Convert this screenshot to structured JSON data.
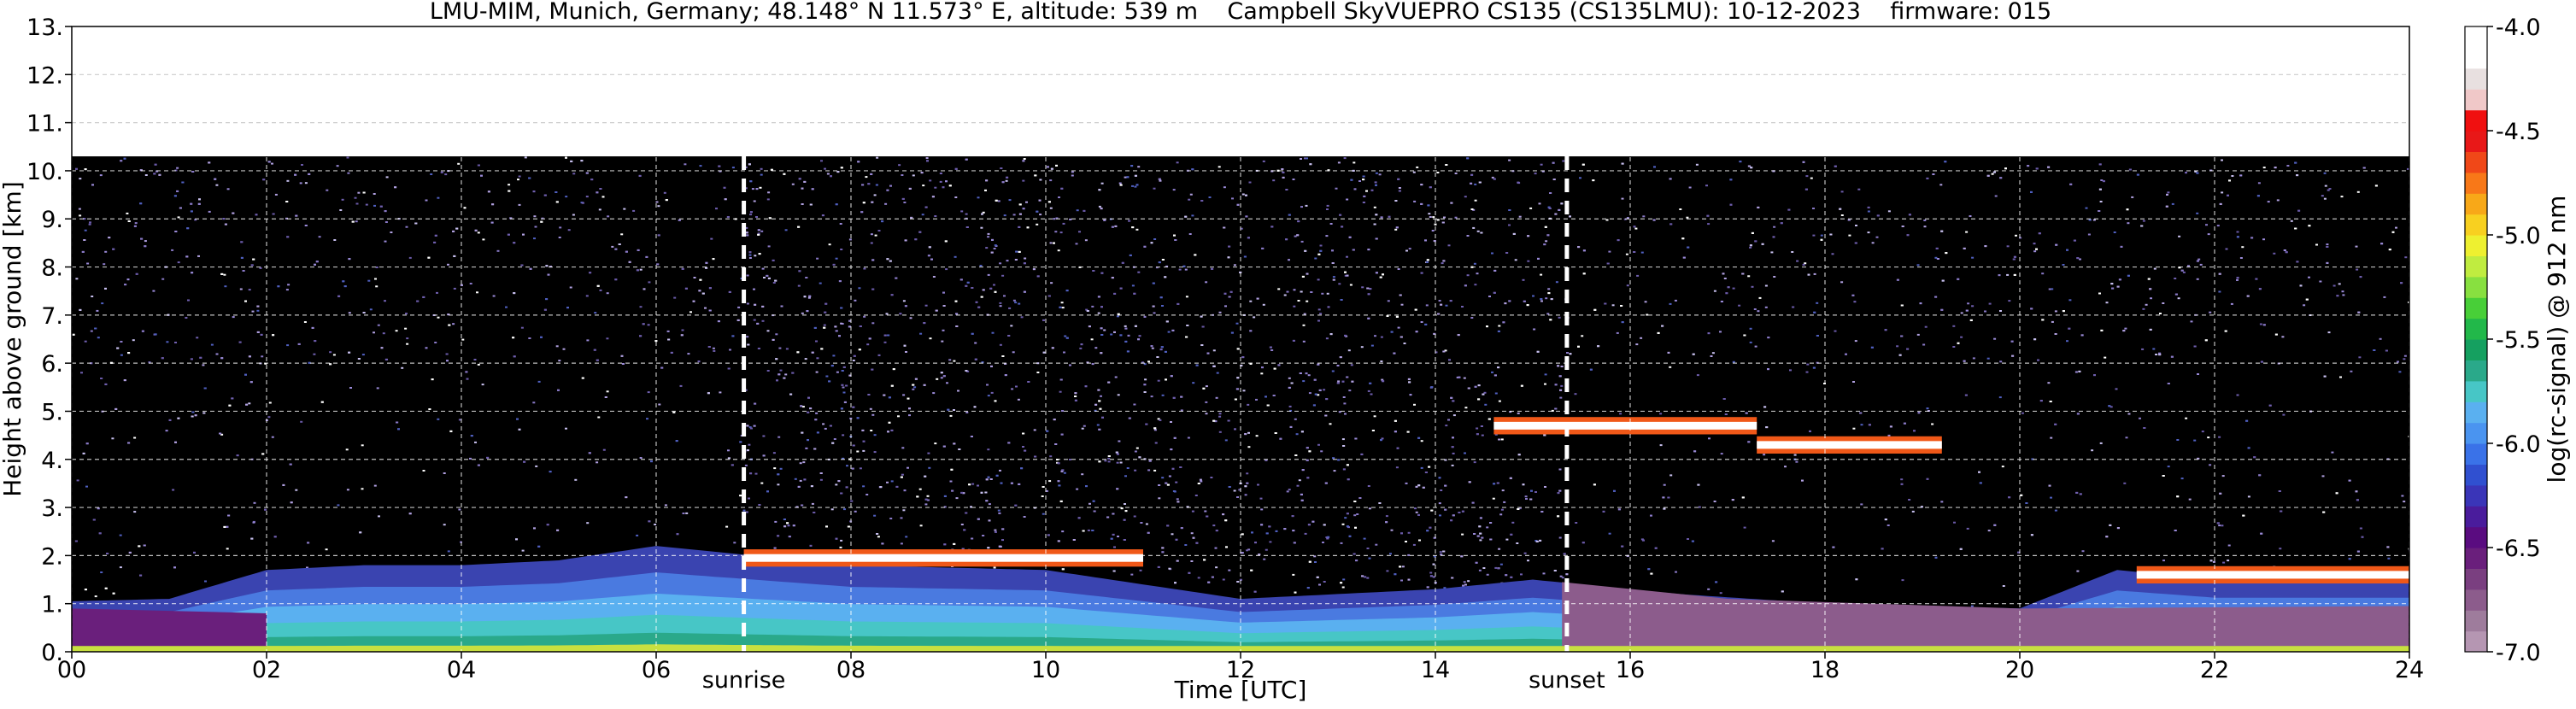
{
  "chart_data": {
    "type": "heatmap",
    "title": "LMU-MIM, Munich, Germany; 48.148° N 11.573° E, altitude: 539 m    Campbell SkyVUEPRO CS135 (CS135LMU): 10-12-2023    firmware: 015",
    "xlabel": "Time [UTC]",
    "ylabel": "Height above ground [km]",
    "xlim": [
      0,
      24
    ],
    "ylim": [
      0,
      13
    ],
    "x_ticks": [
      "00",
      "02",
      "04",
      "06",
      "08",
      "10",
      "12",
      "14",
      "16",
      "18",
      "20",
      "22",
      "24"
    ],
    "y_ticks": [
      "0.",
      "1.",
      "2.",
      "3.",
      "4.",
      "5.",
      "6.",
      "7.",
      "8.",
      "9.",
      "10.",
      "11.",
      "12.",
      "13."
    ],
    "grid": true,
    "data_top_km": 10.3,
    "markers": [
      {
        "label": "sunrise",
        "time_h": 6.9
      },
      {
        "label": "sunset",
        "time_h": 15.35
      }
    ],
    "colorbar": {
      "label": "log(rc-signal) @ 912 nm",
      "range": [
        -7.0,
        -4.0
      ],
      "ticks": [
        "-4.0",
        "-4.5",
        "-5.0",
        "-5.5",
        "-6.0",
        "-6.5",
        "-7.0"
      ],
      "colors": [
        "#b596b2",
        "#9e7c9c",
        "#8c5c8c",
        "#7a3f80",
        "#6a1f7c",
        "#5a0c80",
        "#4a1c9c",
        "#3a35b8",
        "#3050d0",
        "#3a72e8",
        "#4a94f0",
        "#5ab0f0",
        "#47c6c6",
        "#2aa98a",
        "#15a060",
        "#22b84a",
        "#48cf38",
        "#88e040",
        "#c0ec40",
        "#eef030",
        "#f8d020",
        "#f8a818",
        "#f87818",
        "#f04818",
        "#e81818",
        "#f01010",
        "#f0c8c8",
        "#e8e0e0",
        "#ffffff",
        "#ffffff"
      ]
    },
    "layers": {
      "boundary_layer": [
        {
          "t": 0.0,
          "h": 1.05
        },
        {
          "t": 1.0,
          "h": 1.1
        },
        {
          "t": 2.0,
          "h": 1.7
        },
        {
          "t": 3.0,
          "h": 1.8
        },
        {
          "t": 4.0,
          "h": 1.8
        },
        {
          "t": 5.0,
          "h": 1.9
        },
        {
          "t": 6.0,
          "h": 2.2
        },
        {
          "t": 7.0,
          "h": 2.0
        },
        {
          "t": 8.0,
          "h": 1.8
        },
        {
          "t": 10.0,
          "h": 1.7
        },
        {
          "t": 12.0,
          "h": 1.1
        },
        {
          "t": 14.0,
          "h": 1.3
        },
        {
          "t": 15.0,
          "h": 1.5
        },
        {
          "t": 16.5,
          "h": 1.2
        },
        {
          "t": 18.0,
          "h": 1.0
        },
        {
          "t": 20.0,
          "h": 0.9
        },
        {
          "t": 21.0,
          "h": 1.7
        },
        {
          "t": 22.0,
          "h": 1.5
        },
        {
          "t": 24.0,
          "h": 1.5
        }
      ],
      "cloud_bands": [
        {
          "t_start": 6.9,
          "t_end": 11.0,
          "h": 1.95
        },
        {
          "t_start": 14.6,
          "t_end": 17.3,
          "h": 4.7
        },
        {
          "t_start": 17.3,
          "t_end": 19.2,
          "h": 4.3
        },
        {
          "t_start": 21.2,
          "t_end": 24.0,
          "h": 1.6
        }
      ]
    }
  }
}
